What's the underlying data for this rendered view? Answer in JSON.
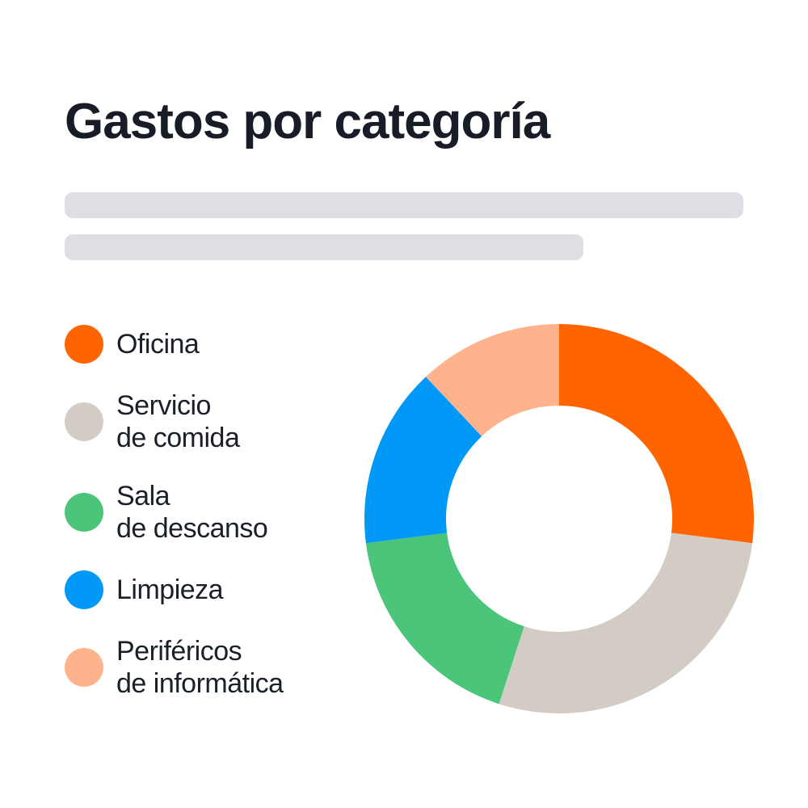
{
  "chart_data": {
    "type": "pie",
    "variant": "donut",
    "title": "Gastos por categoría",
    "legend_position": "left",
    "categories": [
      "Oficina",
      "Servicio de comida",
      "Sala de descanso",
      "Limpieza",
      "Periféricos de informática"
    ],
    "values": [
      27,
      28,
      18,
      15,
      12
    ],
    "colors": [
      "#ff6400",
      "#d3ccc5",
      "#4bc57a",
      "#0099f7",
      "#ffb38c"
    ],
    "legend": [
      {
        "lines": [
          "Oficina"
        ]
      },
      {
        "lines": [
          "Servicio",
          "de comida"
        ]
      },
      {
        "lines": [
          "Sala",
          "de descanso"
        ]
      },
      {
        "lines": [
          "Limpieza"
        ]
      },
      {
        "lines": [
          "Periféricos",
          "de informática"
        ]
      }
    ]
  }
}
